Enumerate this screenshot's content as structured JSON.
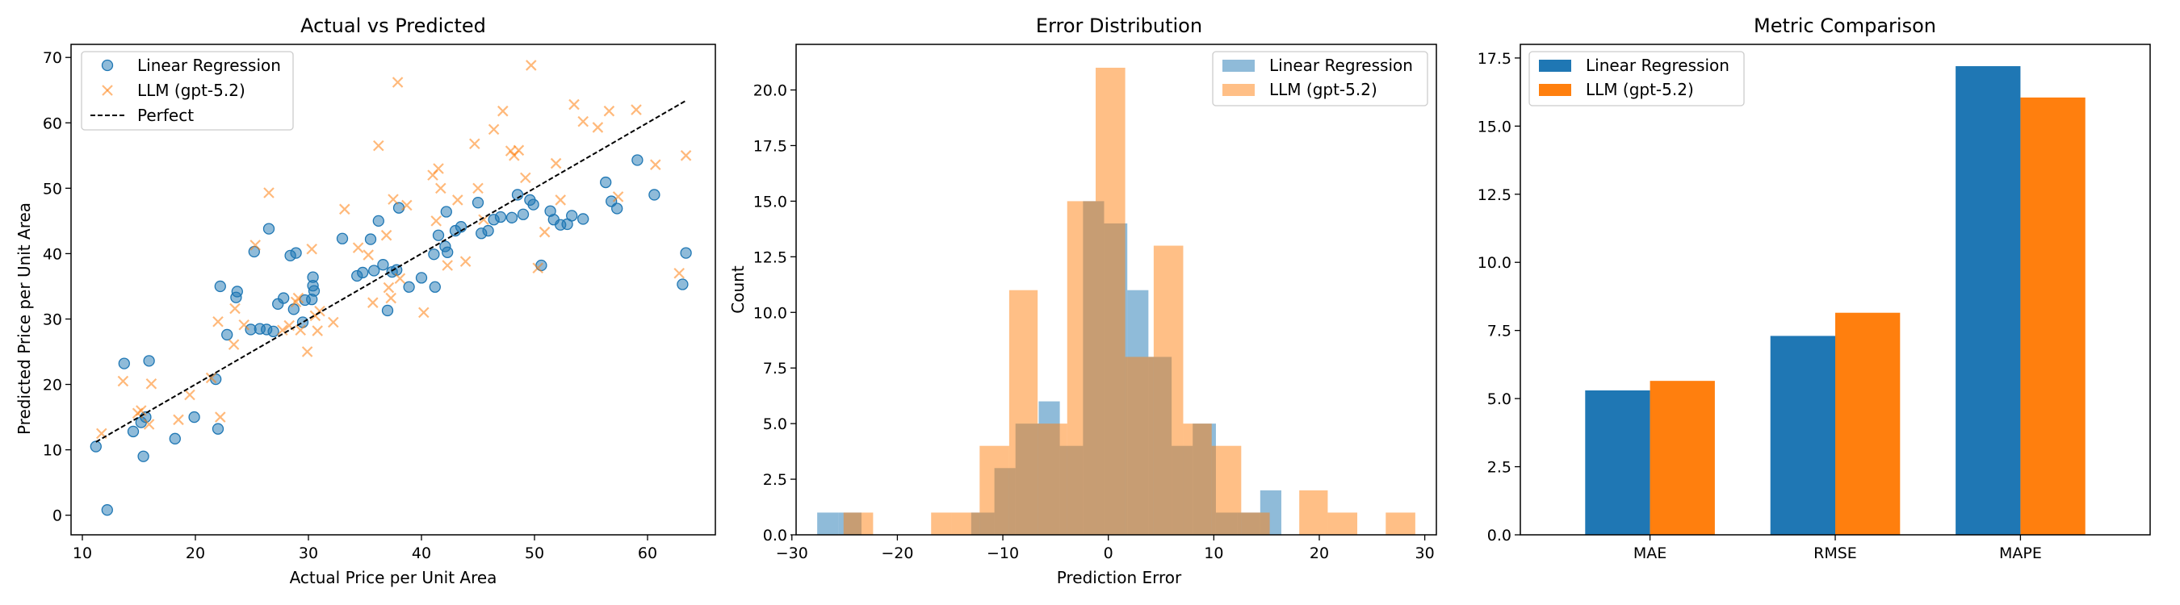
{
  "colors": {
    "lr": "#1f77b4",
    "llm": "#ff7f0e",
    "perfect": "#000000"
  },
  "panels": {
    "scatter": {
      "title": "Actual vs Predicted",
      "xlabel": "Actual Price per Unit Area",
      "ylabel": "Predicted Price per Unit Area",
      "legend": [
        "Linear Regression",
        "LLM (gpt-5.2)",
        "Perfect"
      ]
    },
    "hist": {
      "title": "Error Distribution",
      "xlabel": "Prediction Error",
      "ylabel": "Count",
      "legend": [
        "Linear Regression",
        "LLM (gpt-5.2)"
      ]
    },
    "bars": {
      "title": "Metric Comparison",
      "legend": [
        "Linear Regression",
        "LLM (gpt-5.2)"
      ]
    }
  },
  "chart_data": [
    {
      "type": "scatter",
      "title": "Actual vs Predicted",
      "xlabel": "Actual Price per Unit Area",
      "ylabel": "Predicted Price per Unit Area",
      "xlim": [
        9,
        66
      ],
      "ylim": [
        -3,
        72
      ],
      "xticks": [
        10,
        20,
        30,
        40,
        50,
        60
      ],
      "yticks": [
        0,
        10,
        20,
        30,
        40,
        50,
        60,
        70
      ],
      "legend_position": "top-left",
      "series": [
        {
          "name": "Linear Regression",
          "marker": "circle",
          "points": [
            [
              11.2,
              10.5
            ],
            [
              12.2,
              0.8
            ],
            [
              13.7,
              23.2
            ],
            [
              14.5,
              12.8
            ],
            [
              15.2,
              14.2
            ],
            [
              15.4,
              9
            ],
            [
              15.6,
              15
            ],
            [
              15.9,
              23.6
            ],
            [
              18.2,
              11.7
            ],
            [
              19.9,
              15
            ],
            [
              21.8,
              20.8
            ],
            [
              22,
              13.2
            ],
            [
              22.2,
              35
            ],
            [
              22.8,
              27.6
            ],
            [
              23.6,
              33.3
            ],
            [
              23.7,
              34.2
            ],
            [
              24.9,
              28.4
            ],
            [
              25.2,
              40.3
            ],
            [
              25.7,
              28.5
            ],
            [
              26.3,
              28.4
            ],
            [
              26.5,
              43.8
            ],
            [
              26.9,
              28.1
            ],
            [
              27.3,
              32.3
            ],
            [
              27.8,
              33.2
            ],
            [
              28.4,
              39.7
            ],
            [
              28.9,
              40.1
            ],
            [
              28.7,
              31.5
            ],
            [
              29.5,
              29.5
            ],
            [
              29.7,
              32.9
            ],
            [
              30.3,
              33
            ],
            [
              30.4,
              35.1
            ],
            [
              30.4,
              36.4
            ],
            [
              30.5,
              34.3
            ],
            [
              33,
              42.3
            ],
            [
              34.3,
              36.6
            ],
            [
              34.8,
              37.1
            ],
            [
              35.5,
              42.2
            ],
            [
              35.8,
              37.4
            ],
            [
              36.2,
              45
            ],
            [
              36.6,
              38.3
            ],
            [
              37,
              31.3
            ],
            [
              37.4,
              37.2
            ],
            [
              37.8,
              37.5
            ],
            [
              38,
              47
            ],
            [
              38.9,
              34.9
            ],
            [
              40,
              36.3
            ],
            [
              41.1,
              39.9
            ],
            [
              41.2,
              34.9
            ],
            [
              41.5,
              42.8
            ],
            [
              42.1,
              41.1
            ],
            [
              42.2,
              46.4
            ],
            [
              42.3,
              40.2
            ],
            [
              43,
              43.5
            ],
            [
              43.5,
              44.1
            ],
            [
              45,
              47.8
            ],
            [
              45.3,
              43.1
            ],
            [
              45.9,
              43.5
            ],
            [
              46.4,
              45.2
            ],
            [
              47,
              45.6
            ],
            [
              48,
              45.5
            ],
            [
              48.5,
              49
            ],
            [
              49,
              46
            ],
            [
              49.6,
              48.2
            ],
            [
              49.9,
              47.5
            ],
            [
              50.6,
              38.2
            ],
            [
              51.4,
              46.5
            ],
            [
              51.7,
              45.2
            ],
            [
              52.3,
              44.4
            ],
            [
              52.9,
              44.5
            ],
            [
              53.3,
              45.8
            ],
            [
              54.3,
              45.3
            ],
            [
              56.3,
              50.9
            ],
            [
              56.8,
              48
            ],
            [
              57.3,
              46.9
            ],
            [
              59.1,
              54.3
            ],
            [
              60.6,
              49
            ],
            [
              63.1,
              35.3
            ],
            [
              63.4,
              40.1
            ]
          ]
        },
        {
          "name": "LLM (gpt-5.2)",
          "marker": "x",
          "points": [
            [
              11.7,
              12.5
            ],
            [
              13.6,
              20.5
            ],
            [
              14.9,
              15.6
            ],
            [
              15.2,
              16
            ],
            [
              15.9,
              13.9
            ],
            [
              16.1,
              20.1
            ],
            [
              18.5,
              14.6
            ],
            [
              19.5,
              18.4
            ],
            [
              21.4,
              21
            ],
            [
              22,
              29.6
            ],
            [
              22.2,
              15
            ],
            [
              23.4,
              26.1
            ],
            [
              23.5,
              31.6
            ],
            [
              24.3,
              29.1
            ],
            [
              25.3,
              41.3
            ],
            [
              26.5,
              49.3
            ],
            [
              27.7,
              28.3
            ],
            [
              28.3,
              29
            ],
            [
              28.9,
              32.6
            ],
            [
              29.1,
              33.2
            ],
            [
              29.3,
              28.3
            ],
            [
              29.9,
              25
            ],
            [
              30.3,
              40.7
            ],
            [
              30.6,
              30.5
            ],
            [
              30.8,
              28.2
            ],
            [
              31,
              31.2
            ],
            [
              32.2,
              29.5
            ],
            [
              33.2,
              46.8
            ],
            [
              34.4,
              40.9
            ],
            [
              35.3,
              39.8
            ],
            [
              35.7,
              32.5
            ],
            [
              36.2,
              56.5
            ],
            [
              36.9,
              42.8
            ],
            [
              37.1,
              34.8
            ],
            [
              37.3,
              33.2
            ],
            [
              37.5,
              48.3
            ],
            [
              37.9,
              66.2
            ],
            [
              38.1,
              36.2
            ],
            [
              38.7,
              47.4
            ],
            [
              40.2,
              31
            ],
            [
              41,
              52
            ],
            [
              41.3,
              45
            ],
            [
              41.5,
              53
            ],
            [
              41.7,
              50
            ],
            [
              42.3,
              38.2
            ],
            [
              43.2,
              48.2
            ],
            [
              43.9,
              38.8
            ],
            [
              44.7,
              56.8
            ],
            [
              45,
              50
            ],
            [
              45.5,
              45.2
            ],
            [
              46.4,
              59
            ],
            [
              47.2,
              61.8
            ],
            [
              47.9,
              55.7
            ],
            [
              48.2,
              55
            ],
            [
              48.6,
              55.8
            ],
            [
              49.2,
              51.6
            ],
            [
              49.7,
              68.8
            ],
            [
              50.3,
              37.8
            ],
            [
              50.9,
              43.3
            ],
            [
              51.9,
              53.8
            ],
            [
              52.3,
              48.2
            ],
            [
              53.5,
              62.8
            ],
            [
              54.3,
              60.2
            ],
            [
              55.6,
              59.3
            ],
            [
              56.6,
              61.8
            ],
            [
              57.4,
              48.7
            ],
            [
              59,
              62
            ],
            [
              60.7,
              53.6
            ],
            [
              62.8,
              37
            ],
            [
              63.4,
              55
            ]
          ]
        },
        {
          "name": "Perfect",
          "marker": "dashed-line",
          "points": [
            [
              11.2,
              11.2
            ],
            [
              63.4,
              63.4
            ]
          ]
        }
      ]
    },
    {
      "type": "histogram",
      "title": "Error Distribution",
      "xlabel": "Prediction Error",
      "ylabel": "Count",
      "xlim": [
        -29.6,
        31.1
      ],
      "ylim": [
        0,
        22.05
      ],
      "xticks": [
        -30,
        -20,
        -10,
        0,
        10,
        20,
        30
      ],
      "yticks": [
        0,
        2.5,
        5,
        7.5,
        10,
        12.5,
        15,
        17.5,
        20
      ],
      "legend_position": "top-right",
      "series": [
        {
          "name": "Linear Regression",
          "bin_edges": [
            -27.6,
            -25.6,
            -23.4,
            -21.4,
            -19.2,
            -17.2,
            -15,
            -13,
            -10.8,
            -8.8,
            -6.6,
            -4.6,
            -2.4,
            -0.4,
            1.8,
            3.8,
            6,
            8,
            10.2,
            12.2,
            14.4,
            16.4,
            18.6
          ],
          "counts": [
            1,
            1,
            0,
            0,
            0,
            0,
            0,
            1,
            3,
            5,
            6,
            4,
            15,
            14,
            11,
            8,
            4,
            5,
            1,
            1,
            2,
            0
          ]
        },
        {
          "name": "LLM (gpt-5.2)",
          "bin_edges": [
            -25.1,
            -22.3,
            -19.5,
            -16.8,
            -14.9,
            -12.2,
            -9.4,
            -6.7,
            -3.9,
            -1.2,
            1.6,
            4.3,
            7.1,
            9.8,
            12.6,
            15.3,
            18.1,
            20.8,
            23.6,
            26.3,
            29.1
          ],
          "counts": [
            1,
            0,
            0,
            1,
            1,
            4,
            11,
            5,
            15,
            21,
            8,
            13,
            5,
            4,
            1,
            0,
            2,
            1,
            0,
            1
          ]
        }
      ]
    },
    {
      "type": "bar",
      "title": "Metric Comparison",
      "categories": [
        "MAE",
        "RMSE",
        "MAPE"
      ],
      "ylim": [
        0,
        18
      ],
      "yticks": [
        0,
        2.5,
        5,
        7.5,
        10,
        12.5,
        15,
        17.5
      ],
      "legend_position": "top-left",
      "series": [
        {
          "name": "Linear Regression",
          "values": [
            5.3,
            7.3,
            17.2
          ]
        },
        {
          "name": "LLM (gpt-5.2)",
          "values": [
            5.65,
            8.15,
            16.05
          ]
        }
      ]
    }
  ]
}
